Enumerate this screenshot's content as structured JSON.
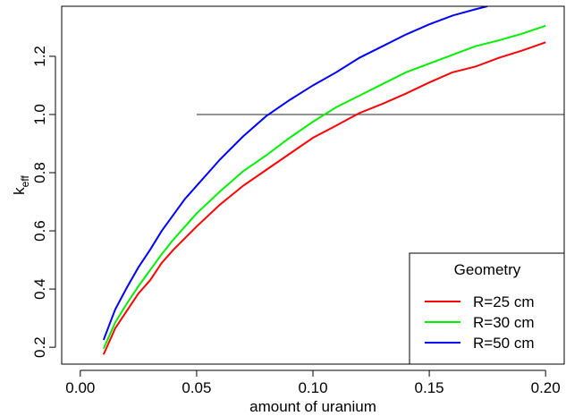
{
  "chart_data": {
    "type": "line",
    "title": "",
    "xlabel": "amount of uranium",
    "ylabel": {
      "main": "k",
      "subscript": "eff"
    },
    "xlim": [
      -0.008,
      0.208
    ],
    "ylim": [
      0.142,
      1.372
    ],
    "x_ticks": [
      0.0,
      0.05,
      0.1,
      0.15,
      0.2
    ],
    "x_tick_labels": [
      "0.00",
      "0.05",
      "0.10",
      "0.15",
      "0.20"
    ],
    "y_ticks": [
      0.2,
      0.4,
      0.6,
      0.8,
      1.0,
      1.2
    ],
    "y_tick_labels": [
      "0.2",
      "0.4",
      "0.6",
      "0.8",
      "1.0",
      "1.2"
    ],
    "grid": false,
    "reference_line": {
      "y": 1.0,
      "x_from": 0.05,
      "x_to": 0.208,
      "color": "#555555"
    },
    "legend": {
      "title": "Geometry",
      "placement": "bottom-right"
    },
    "series": [
      {
        "name": "R=25 cm",
        "color": "#ff0000",
        "x": [
          0.01,
          0.015,
          0.02,
          0.025,
          0.03,
          0.035,
          0.04,
          0.045,
          0.05,
          0.06,
          0.07,
          0.08,
          0.09,
          0.1,
          0.11,
          0.12,
          0.13,
          0.14,
          0.15,
          0.16,
          0.17,
          0.18,
          0.19,
          0.2
        ],
        "y": [
          0.175,
          0.265,
          0.325,
          0.385,
          0.43,
          0.49,
          0.535,
          0.575,
          0.615,
          0.69,
          0.755,
          0.81,
          0.865,
          0.92,
          0.962,
          1.005,
          1.037,
          1.072,
          1.11,
          1.145,
          1.165,
          1.195,
          1.22,
          1.248
        ]
      },
      {
        "name": "R=30 cm",
        "color": "#00ee00",
        "x": [
          0.01,
          0.015,
          0.02,
          0.025,
          0.03,
          0.035,
          0.04,
          0.045,
          0.05,
          0.06,
          0.07,
          0.08,
          0.09,
          0.1,
          0.11,
          0.12,
          0.13,
          0.14,
          0.15,
          0.16,
          0.17,
          0.18,
          0.19,
          0.2
        ],
        "y": [
          0.195,
          0.285,
          0.35,
          0.41,
          0.465,
          0.52,
          0.57,
          0.615,
          0.66,
          0.735,
          0.805,
          0.86,
          0.92,
          0.975,
          1.025,
          1.065,
          1.105,
          1.145,
          1.175,
          1.205,
          1.235,
          1.255,
          1.278,
          1.305
        ]
      },
      {
        "name": "R=50 cm",
        "color": "#0000ff",
        "x": [
          0.01,
          0.015,
          0.02,
          0.025,
          0.03,
          0.035,
          0.04,
          0.045,
          0.05,
          0.06,
          0.07,
          0.08,
          0.09,
          0.1,
          0.11,
          0.12,
          0.13,
          0.14,
          0.15,
          0.16,
          0.17,
          0.175
        ],
        "y": [
          0.225,
          0.33,
          0.405,
          0.475,
          0.535,
          0.6,
          0.655,
          0.71,
          0.755,
          0.845,
          0.925,
          0.995,
          1.05,
          1.1,
          1.145,
          1.195,
          1.235,
          1.275,
          1.31,
          1.34,
          1.362,
          1.372
        ]
      }
    ]
  }
}
